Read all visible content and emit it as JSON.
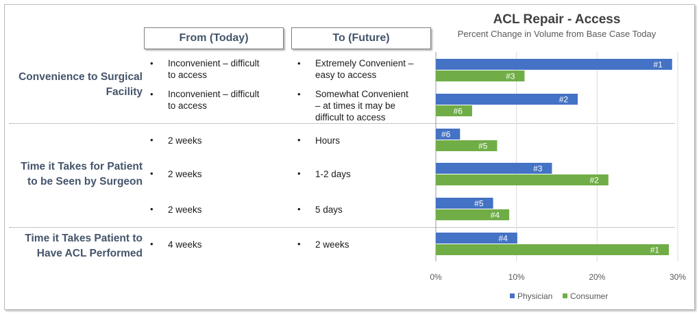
{
  "headers": {
    "from": "From (Today)",
    "to": "To (Future)"
  },
  "categories": [
    {
      "label_lines": [
        "Convenience to Surgical",
        "Facility"
      ]
    },
    {
      "label_lines": [
        "Time it Takes for Patient",
        "to be Seen by Surgeon"
      ]
    },
    {
      "label_lines": [
        "Time it Takes Patient to",
        "Have ACL Performed"
      ]
    }
  ],
  "rows": [
    {
      "from_lines": [
        "Inconvenient – difficult",
        "to access"
      ],
      "to_lines": [
        "Extremely Convenient –",
        "easy to access"
      ]
    },
    {
      "from_lines": [
        "Inconvenient – difficult",
        "to access"
      ],
      "to_lines": [
        "Somewhat Convenient",
        "– at times it may be",
        "difficult to access"
      ]
    },
    {
      "from_lines": [
        "2 weeks"
      ],
      "to_lines": [
        "Hours"
      ]
    },
    {
      "from_lines": [
        "2 weeks"
      ],
      "to_lines": [
        "1-2 days"
      ]
    },
    {
      "from_lines": [
        "2 weeks"
      ],
      "to_lines": [
        "5 days"
      ]
    },
    {
      "from_lines": [
        "4 weeks"
      ],
      "to_lines": [
        "2 weeks"
      ]
    }
  ],
  "bullet": "•",
  "chart_data": {
    "type": "bar",
    "orientation": "horizontal",
    "title": "ACL Repair - Access",
    "subtitle": "Percent Change in Volume from Base Case Today",
    "xlim": [
      0,
      0.3
    ],
    "xticks": [
      0,
      0.1,
      0.2,
      0.3
    ],
    "xtick_labels": [
      "0%",
      "10%",
      "20%",
      "30%"
    ],
    "grid": true,
    "legend_position": "bottom",
    "series": [
      {
        "name": "Physician",
        "color": "#4472c4",
        "values": [
          0.293,
          0.176,
          0.03,
          0.144,
          0.071,
          0.101
        ],
        "labels": [
          "#1",
          "#2",
          "#6",
          "#3",
          "#5",
          "#4"
        ]
      },
      {
        "name": "Consumer",
        "color": "#70ad47",
        "values": [
          0.11,
          0.045,
          0.076,
          0.214,
          0.091,
          0.289
        ],
        "labels": [
          "#3",
          "#6",
          "#5",
          "#2",
          "#4",
          "#1"
        ]
      }
    ]
  }
}
